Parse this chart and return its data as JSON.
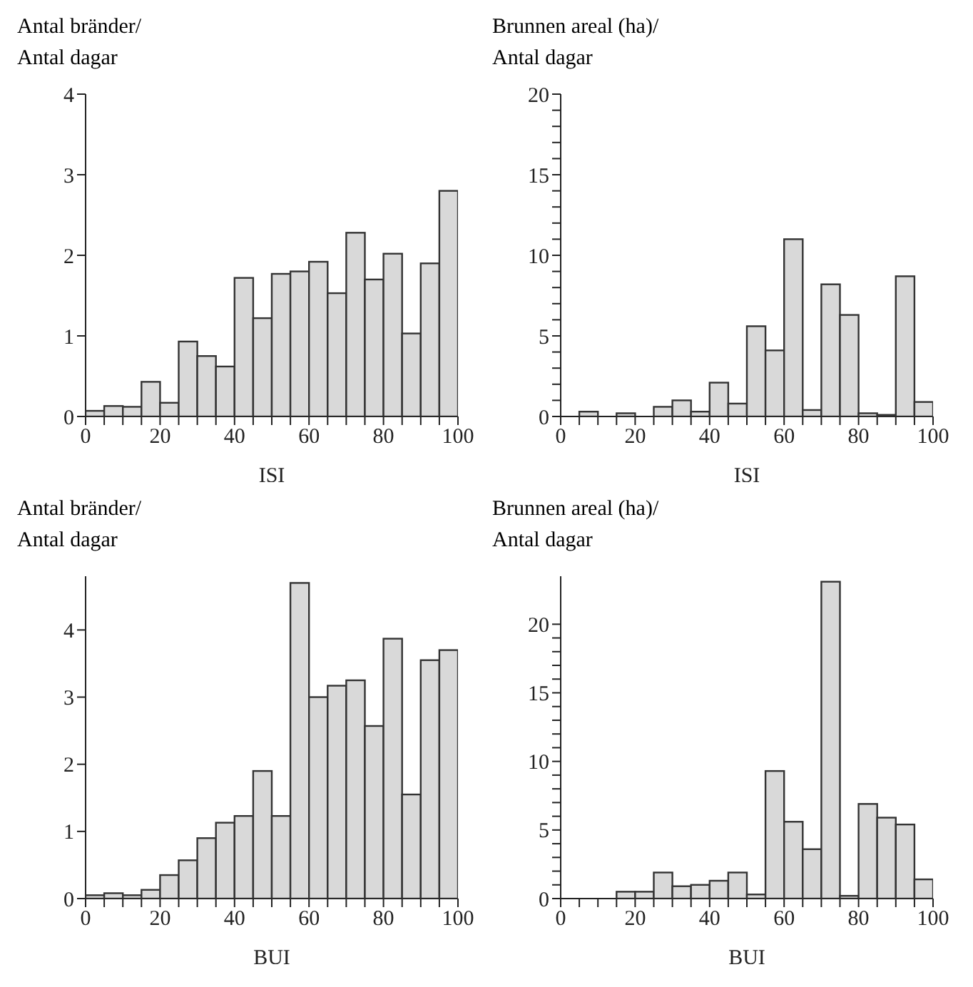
{
  "chart_data": [
    {
      "type": "histogram",
      "ylabel": "Antal bränder/\nAntal dagar",
      "xlabel": "ISI",
      "bins": [
        0,
        5,
        10,
        15,
        20,
        25,
        30,
        35,
        40,
        45,
        50,
        55,
        60,
        65,
        70,
        75,
        80,
        85,
        90,
        95,
        100
      ],
      "values": [
        0.07,
        0.13,
        0.12,
        0.43,
        0.17,
        0.93,
        0.75,
        0.62,
        1.72,
        1.22,
        1.77,
        1.8,
        1.92,
        1.53,
        2.28,
        1.7,
        2.02,
        1.03,
        1.9,
        2.8
      ],
      "color": "#d9d9d9",
      "xlim": [
        0,
        100
      ],
      "xticks": [
        0,
        {
          "value": 5,
          "label": null
        },
        {
          "value": 10,
          "label": null
        },
        {
          "value": 15,
          "label": null
        },
        20,
        {
          "value": 25,
          "label": null
        },
        {
          "value": 30,
          "label": null
        },
        {
          "value": 35,
          "label": null
        },
        40,
        {
          "value": 45,
          "label": null
        },
        {
          "value": 50,
          "label": null
        },
        {
          "value": 55,
          "label": null
        },
        60,
        {
          "value": 65,
          "label": null
        },
        {
          "value": 70,
          "label": null
        },
        {
          "value": 75,
          "label": null
        },
        80,
        {
          "value": 85,
          "label": null
        },
        {
          "value": 90,
          "label": null
        },
        {
          "value": 95,
          "label": null
        },
        100
      ],
      "ylim": [
        0,
        4
      ],
      "yticks": [
        0,
        1,
        2,
        3,
        4
      ]
    },
    {
      "type": "histogram",
      "ylabel": "Brunnen areal (ha)/\nAntal dagar",
      "xlabel": "ISI",
      "bins": [
        0,
        5,
        10,
        15,
        20,
        25,
        30,
        35,
        40,
        45,
        50,
        55,
        60,
        65,
        70,
        75,
        80,
        85,
        90,
        95,
        100
      ],
      "values": [
        0,
        0.3,
        0,
        0.2,
        0,
        0.6,
        1.0,
        0.3,
        2.1,
        0.8,
        5.6,
        4.1,
        11.0,
        0.4,
        8.2,
        6.3,
        0.2,
        0.1,
        8.7,
        0.9
      ],
      "color": "#d9d9d9",
      "xlim": [
        0,
        100
      ],
      "xticks": [
        0,
        {
          "value": 5,
          "label": null
        },
        {
          "value": 10,
          "label": null
        },
        {
          "value": 15,
          "label": null
        },
        20,
        {
          "value": 25,
          "label": null
        },
        {
          "value": 30,
          "label": null
        },
        {
          "value": 35,
          "label": null
        },
        40,
        {
          "value": 45,
          "label": null
        },
        {
          "value": 50,
          "label": null
        },
        {
          "value": 55,
          "label": null
        },
        60,
        {
          "value": 65,
          "label": null
        },
        {
          "value": 70,
          "label": null
        },
        {
          "value": 75,
          "label": null
        },
        80,
        {
          "value": 85,
          "label": null
        },
        {
          "value": 90,
          "label": null
        },
        {
          "value": 95,
          "label": null
        },
        100
      ],
      "ylim": [
        0,
        20
      ],
      "yticks": [
        0,
        {
          "value": 1,
          "label": null
        },
        {
          "value": 2,
          "label": null
        },
        {
          "value": 3,
          "label": null
        },
        {
          "value": 4,
          "label": null
        },
        5,
        {
          "value": 6,
          "label": null
        },
        {
          "value": 7,
          "label": null
        },
        {
          "value": 8,
          "label": null
        },
        {
          "value": 9,
          "label": null
        },
        10,
        {
          "value": 11,
          "label": null
        },
        {
          "value": 12,
          "label": null
        },
        {
          "value": 13,
          "label": null
        },
        {
          "value": 14,
          "label": null
        },
        15,
        {
          "value": 16,
          "label": null
        },
        {
          "value": 17,
          "label": null
        },
        {
          "value": 18,
          "label": null
        },
        {
          "value": 19,
          "label": null
        },
        20
      ]
    },
    {
      "type": "histogram",
      "ylabel": "Antal bränder/\nAntal dagar",
      "xlabel": "BUI",
      "bins": [
        0,
        5,
        10,
        15,
        20,
        25,
        30,
        35,
        40,
        45,
        50,
        55,
        60,
        65,
        70,
        75,
        80,
        85,
        90,
        95,
        100
      ],
      "values": [
        0.05,
        0.08,
        0.05,
        0.13,
        0.35,
        0.57,
        0.9,
        1.13,
        1.23,
        1.9,
        1.23,
        4.7,
        3.0,
        3.17,
        3.25,
        2.57,
        3.87,
        1.55,
        3.55,
        3.7
      ],
      "color": "#d9d9d9",
      "xlim": [
        0,
        100
      ],
      "xticks": [
        0,
        {
          "value": 5,
          "label": null
        },
        {
          "value": 10,
          "label": null
        },
        {
          "value": 15,
          "label": null
        },
        20,
        {
          "value": 25,
          "label": null
        },
        {
          "value": 30,
          "label": null
        },
        {
          "value": 35,
          "label": null
        },
        40,
        {
          "value": 45,
          "label": null
        },
        {
          "value": 50,
          "label": null
        },
        {
          "value": 55,
          "label": null
        },
        60,
        {
          "value": 65,
          "label": null
        },
        {
          "value": 70,
          "label": null
        },
        {
          "value": 75,
          "label": null
        },
        80,
        {
          "value": 85,
          "label": null
        },
        {
          "value": 90,
          "label": null
        },
        {
          "value": 95,
          "label": null
        },
        100
      ],
      "ylim": [
        0,
        4.8
      ],
      "yticks": [
        0,
        1,
        2,
        3,
        4
      ]
    },
    {
      "type": "histogram",
      "ylabel": "Brunnen areal (ha)/\nAntal dagar",
      "xlabel": "BUI",
      "bins": [
        0,
        5,
        10,
        15,
        20,
        25,
        30,
        35,
        40,
        45,
        50,
        55,
        60,
        65,
        70,
        75,
        80,
        85,
        90,
        95,
        100
      ],
      "values": [
        0,
        0,
        0,
        0.5,
        0.5,
        1.9,
        0.9,
        1.0,
        1.3,
        1.9,
        0.3,
        9.3,
        5.6,
        3.6,
        23.1,
        0.2,
        6.9,
        5.9,
        5.4,
        1.4
      ],
      "color": "#d9d9d9",
      "xlim": [
        0,
        100
      ],
      "xticks": [
        0,
        {
          "value": 5,
          "label": null
        },
        {
          "value": 10,
          "label": null
        },
        {
          "value": 15,
          "label": null
        },
        20,
        {
          "value": 25,
          "label": null
        },
        {
          "value": 30,
          "label": null
        },
        {
          "value": 35,
          "label": null
        },
        40,
        {
          "value": 45,
          "label": null
        },
        {
          "value": 50,
          "label": null
        },
        {
          "value": 55,
          "label": null
        },
        60,
        {
          "value": 65,
          "label": null
        },
        {
          "value": 70,
          "label": null
        },
        {
          "value": 75,
          "label": null
        },
        80,
        {
          "value": 85,
          "label": null
        },
        {
          "value": 90,
          "label": null
        },
        {
          "value": 95,
          "label": null
        },
        100
      ],
      "ylim": [
        0,
        23.5
      ],
      "yticks": [
        0,
        {
          "value": 1,
          "label": null
        },
        {
          "value": 2,
          "label": null
        },
        {
          "value": 3,
          "label": null
        },
        {
          "value": 4,
          "label": null
        },
        5,
        {
          "value": 6,
          "label": null
        },
        {
          "value": 7,
          "label": null
        },
        {
          "value": 8,
          "label": null
        },
        {
          "value": 9,
          "label": null
        },
        10,
        {
          "value": 11,
          "label": null
        },
        {
          "value": 12,
          "label": null
        },
        {
          "value": 13,
          "label": null
        },
        {
          "value": 14,
          "label": null
        },
        15,
        {
          "value": 16,
          "label": null
        },
        {
          "value": 17,
          "label": null
        },
        {
          "value": 18,
          "label": null
        },
        {
          "value": 19,
          "label": null
        },
        20
      ]
    }
  ]
}
